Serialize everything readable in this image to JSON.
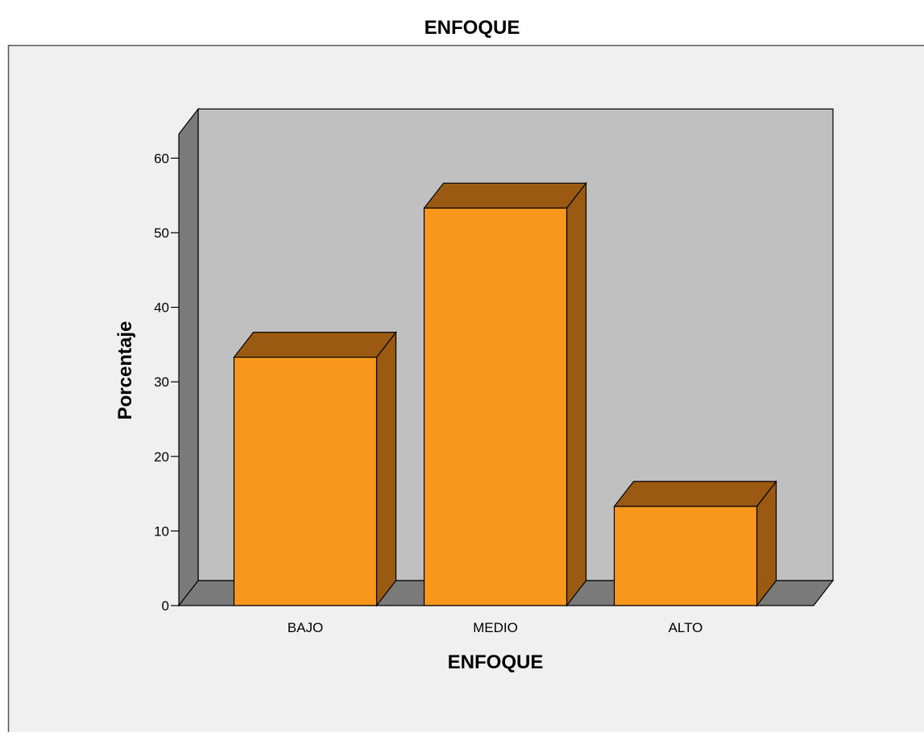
{
  "chart_data": {
    "type": "bar",
    "title": "ENFOQUE",
    "xlabel": "ENFOQUE",
    "ylabel": "Porcentaje",
    "categories": [
      "BAJO",
      "MEDIO",
      "ALTO"
    ],
    "values": [
      33.3,
      53.3,
      13.3
    ],
    "ylim": [
      0,
      60
    ],
    "yticks": [
      0,
      10,
      20,
      30,
      40,
      50,
      60
    ],
    "grid": false,
    "three_d": true,
    "legend": "none",
    "colors": {
      "bar_front": "#F7981D",
      "bar_top": "#9A5A12",
      "bar_side": "#9A5A12",
      "plot_back_wall": "#C0C0C0",
      "plot_side_wall": "#7A7A7A",
      "plot_floor": "#7A7A7A",
      "chart_background": "#F0F0F0"
    }
  }
}
